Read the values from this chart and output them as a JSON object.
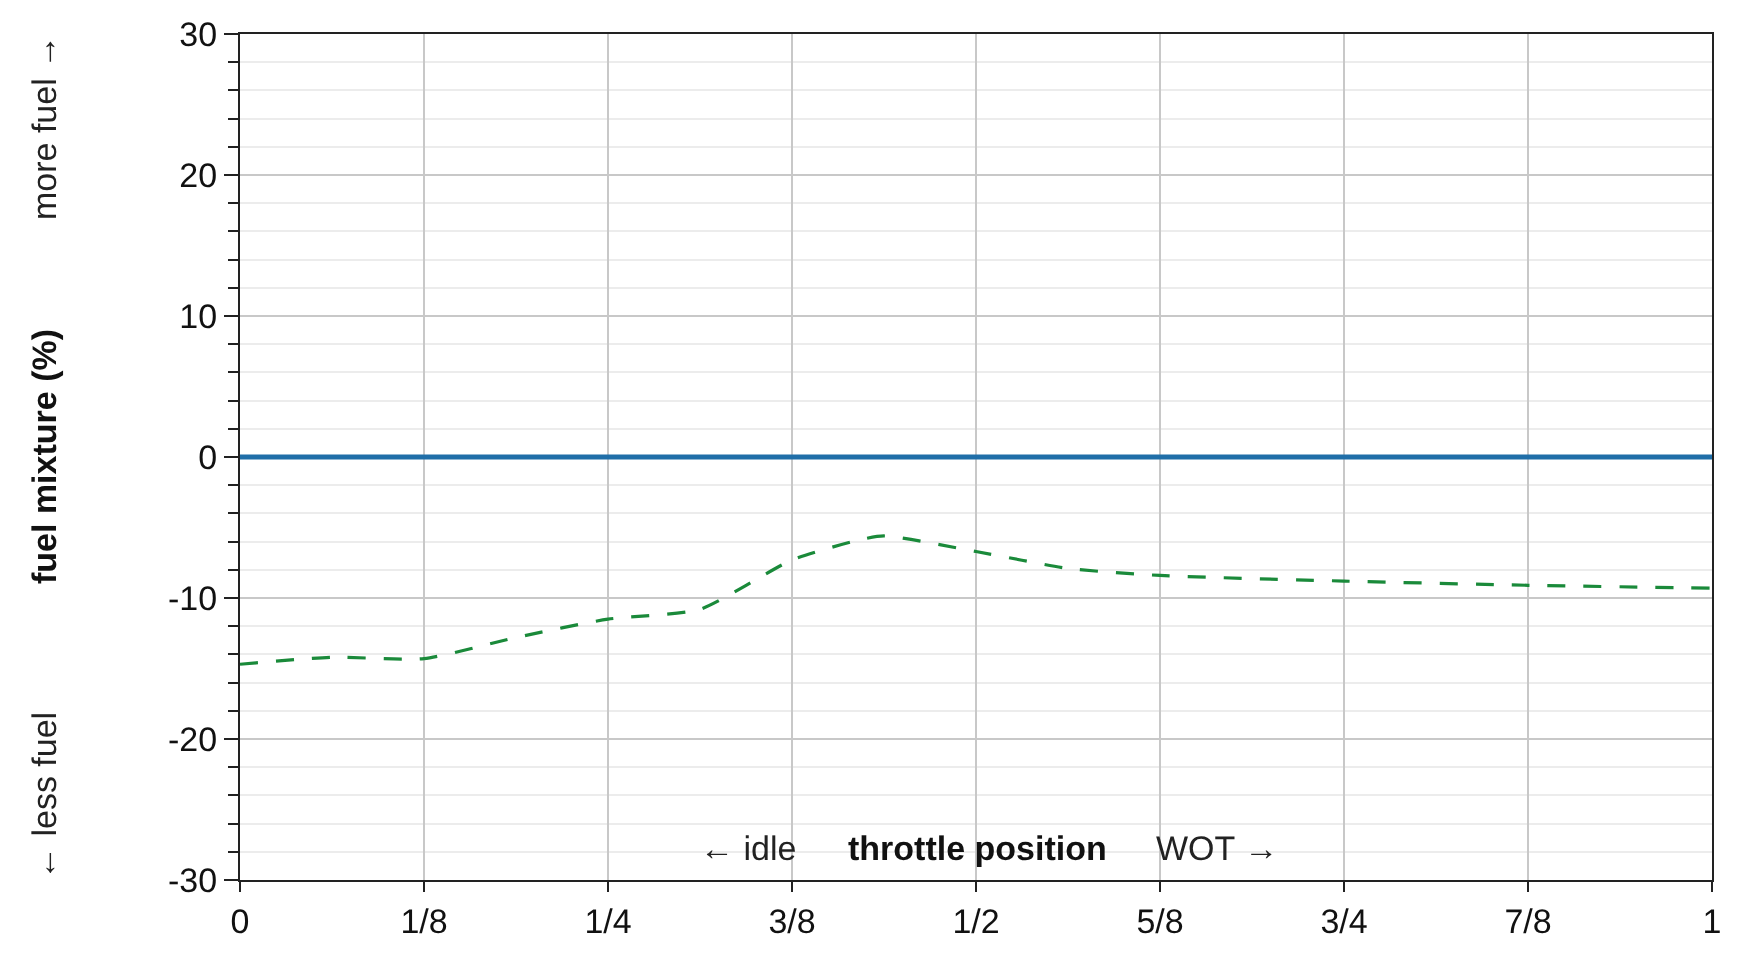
{
  "chart_data": {
    "type": "line",
    "xlabel": "throttle position",
    "ylabel": "fuel mixture (%)",
    "annotations": [
      "← idle",
      "WOT →",
      "← less fuel",
      "more fuel →"
    ],
    "x": [
      0,
      0.0625,
      0.125,
      0.1875,
      0.25,
      0.3125,
      0.375,
      0.42,
      0.4375,
      0.5,
      0.5625,
      0.625,
      0.75,
      0.875,
      1
    ],
    "series": [
      {
        "color": "#1a8a3a",
        "line_style": "dashed",
        "values": [
          -14.7,
          -14.2,
          -14.3,
          -12.8,
          -11.5,
          -10.8,
          -7.3,
          -5.9,
          -5.6,
          -6.7,
          -7.9,
          -8.4,
          -8.8,
          -9.1,
          -9.3
        ]
      }
    ],
    "xlim": [
      0,
      1
    ],
    "ylim": [
      -30,
      30
    ],
    "xticks": [
      0,
      {
        "value": 0.125,
        "label": "1/8"
      },
      {
        "value": 0.25,
        "label": "1/4"
      },
      {
        "value": 0.375,
        "label": "3/8"
      },
      {
        "value": 0.5,
        "label": "1/2"
      },
      {
        "value": 0.625,
        "label": "5/8"
      },
      {
        "value": 0.75,
        "label": "3/4"
      },
      {
        "value": 0.875,
        "label": "7/8"
      },
      1
    ],
    "yticks": [
      -30,
      {
        "value": -28,
        "label": null
      },
      {
        "value": -26,
        "label": null
      },
      {
        "value": -24,
        "label": null
      },
      {
        "value": -22,
        "label": null
      },
      -20,
      {
        "value": -18,
        "label": null
      },
      {
        "value": -16,
        "label": null
      },
      {
        "value": -14,
        "label": null
      },
      {
        "value": -12,
        "label": null
      },
      -10,
      {
        "value": -8,
        "label": null
      },
      {
        "value": -6,
        "label": null
      },
      {
        "value": -4,
        "label": null
      },
      {
        "value": -2,
        "label": null
      },
      0,
      {
        "value": 2,
        "label": null
      },
      {
        "value": 4,
        "label": null
      },
      {
        "value": 6,
        "label": null
      },
      {
        "value": 8,
        "label": null
      },
      10,
      {
        "value": 12,
        "label": null
      },
      {
        "value": 14,
        "label": null
      },
      {
        "value": 16,
        "label": null
      },
      {
        "value": 18,
        "label": null
      },
      20,
      {
        "value": 22,
        "label": null
      },
      {
        "value": 24,
        "label": null
      },
      {
        "value": 26,
        "label": null
      },
      {
        "value": 28,
        "label": null
      },
      30
    ],
    "ref_lines": [
      {
        "axis": "y",
        "value": 0,
        "color": "#1f6ea8",
        "line_style": "solid"
      }
    ],
    "grid": true,
    "legend": false,
    "marker": "none"
  }
}
